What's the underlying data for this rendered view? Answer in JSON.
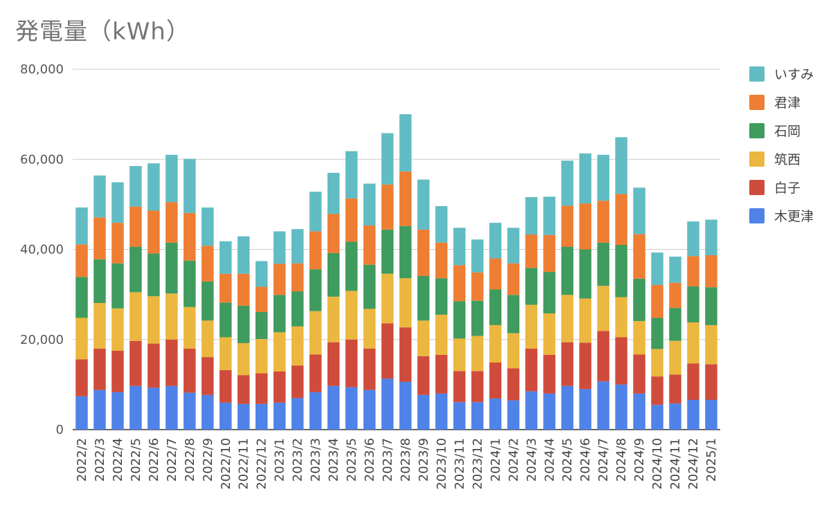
{
  "title": "発電量（kWh）",
  "chart_data": {
    "type": "bar",
    "stacked": true,
    "title": "発電量（kWh）",
    "ylim": [
      0,
      80000
    ],
    "yticks": [
      "0",
      "20,000",
      "40,000",
      "60,000",
      "80,000"
    ],
    "grid": true,
    "legend_position": "right",
    "categories": [
      "2022/2",
      "2022/3",
      "2022/4",
      "2022/5",
      "2022/6",
      "2022/7",
      "2022/8",
      "2022/9",
      "2022/10",
      "2022/11",
      "2022/12",
      "2023/1",
      "2023/2",
      "2023/3",
      "2023/4",
      "2023/5",
      "2023/6",
      "2023/7",
      "2023/8",
      "2023/9",
      "2023/10",
      "2023/11",
      "2023/12",
      "2024/1",
      "2024/2",
      "2024/3",
      "2024/4",
      "2024/5",
      "2024/6",
      "2024/7",
      "2024/8",
      "2024/9",
      "2024/10",
      "2024/11",
      "2024/12",
      "2025/1"
    ],
    "series": [
      {
        "name": "木更津",
        "color": "#5083e8",
        "values": [
          7400,
          8800,
          8300,
          9700,
          9300,
          9700,
          8200,
          7700,
          6000,
          5700,
          5700,
          6000,
          7000,
          8300,
          9700,
          9400,
          8800,
          11300,
          10600,
          7700,
          8000,
          6100,
          6100,
          6900,
          6500,
          8500,
          8000,
          9700,
          9000,
          10700,
          10000,
          8000,
          5500,
          5800,
          6600,
          6600
        ]
      },
      {
        "name": "白子",
        "color": "#cf4c3c",
        "values": [
          8200,
          9200,
          9200,
          10000,
          9800,
          10300,
          9800,
          8400,
          7200,
          6400,
          6800,
          6900,
          7200,
          8400,
          9700,
          10600,
          9200,
          12300,
          12100,
          8600,
          8600,
          6900,
          6900,
          8000,
          7100,
          9500,
          8600,
          9700,
          10300,
          11200,
          10500,
          8700,
          6300,
          6400,
          8100,
          7900
        ]
      },
      {
        "name": "筑西",
        "color": "#ecb73e",
        "values": [
          9200,
          10100,
          9400,
          10800,
          10500,
          10200,
          9200,
          8100,
          7300,
          7100,
          7600,
          8700,
          8700,
          9600,
          10100,
          10800,
          8800,
          11000,
          10900,
          7900,
          8900,
          7200,
          7800,
          8300,
          7800,
          9700,
          9200,
          10500,
          9800,
          10000,
          8900,
          7400,
          6100,
          7500,
          9100,
          8700
        ]
      },
      {
        "name": "石岡",
        "color": "#409b5e",
        "values": [
          9100,
          9700,
          10000,
          10100,
          9500,
          11300,
          10300,
          8700,
          7700,
          8300,
          6000,
          8300,
          7800,
          9300,
          9700,
          10900,
          9800,
          9800,
          11600,
          9900,
          8100,
          8300,
          7800,
          7900,
          8500,
          8200,
          9200,
          10700,
          10900,
          9600,
          11600,
          9400,
          6900,
          7300,
          8000,
          8400
        ]
      },
      {
        "name": "君津",
        "color": "#ee7e33",
        "values": [
          7200,
          9300,
          9000,
          8900,
          9500,
          9000,
          10600,
          7900,
          6400,
          7100,
          5600,
          6900,
          6200,
          8400,
          8700,
          9600,
          8700,
          10000,
          12100,
          10300,
          7900,
          8000,
          6300,
          6900,
          7000,
          7400,
          8200,
          9100,
          10200,
          9300,
          11300,
          9900,
          7300,
          5600,
          6700,
          7100
        ]
      },
      {
        "name": "いすみ",
        "color": "#62bcc3",
        "values": [
          8200,
          9300,
          9000,
          9000,
          10500,
          10500,
          12000,
          8500,
          7200,
          8300,
          5700,
          7200,
          7600,
          8800,
          9100,
          10500,
          9300,
          11400,
          12700,
          11100,
          8100,
          8300,
          7300,
          7900,
          7900,
          8300,
          8500,
          10000,
          11100,
          10200,
          12600,
          10300,
          7200,
          5800,
          7700,
          7900
        ]
      }
    ]
  }
}
